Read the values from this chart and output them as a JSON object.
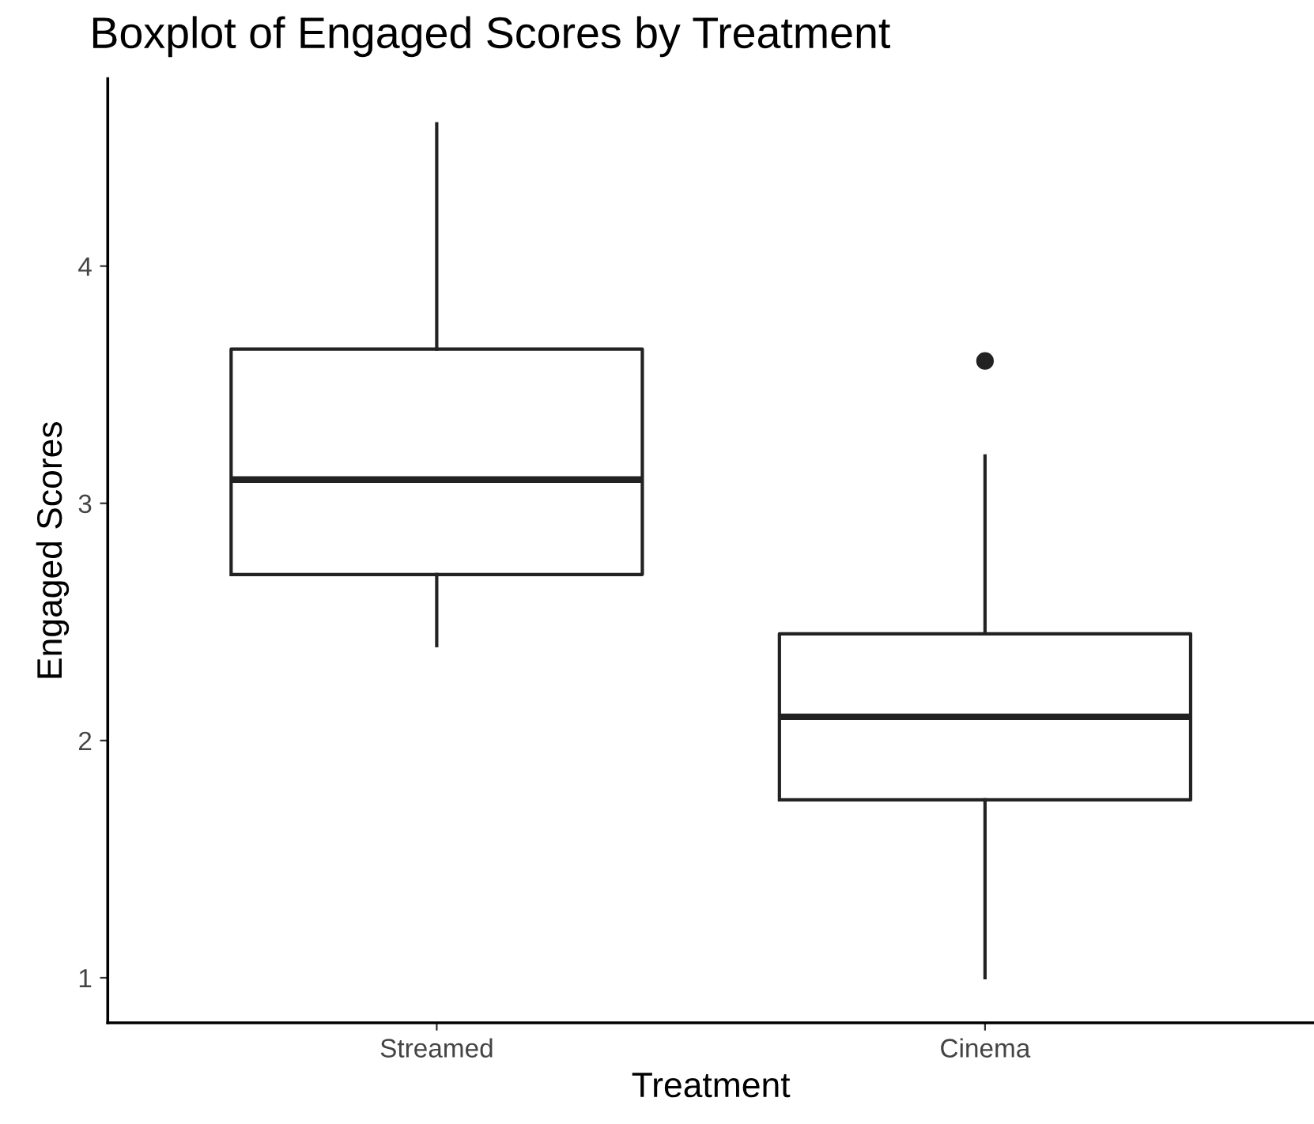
{
  "chart_data": {
    "type": "box",
    "title": "Boxplot of Engaged Scores by Treatment",
    "xlabel": "Treatment",
    "ylabel": "Engaged Scores",
    "categories": [
      "Streamed",
      "Cinema"
    ],
    "boxes": [
      {
        "low": 2.4,
        "q1": 2.7,
        "median": 3.1,
        "q3": 3.65,
        "high": 4.6
      },
      {
        "low": 1.0,
        "q1": 1.75,
        "median": 2.1,
        "q3": 2.45,
        "high": 3.2,
        "outliers": [
          3.6
        ]
      }
    ],
    "color": "#222222",
    "ylim": [
      0.81,
      4.79
    ],
    "yticks": [
      1,
      2,
      3,
      4
    ],
    "grid": false,
    "legend": false
  }
}
